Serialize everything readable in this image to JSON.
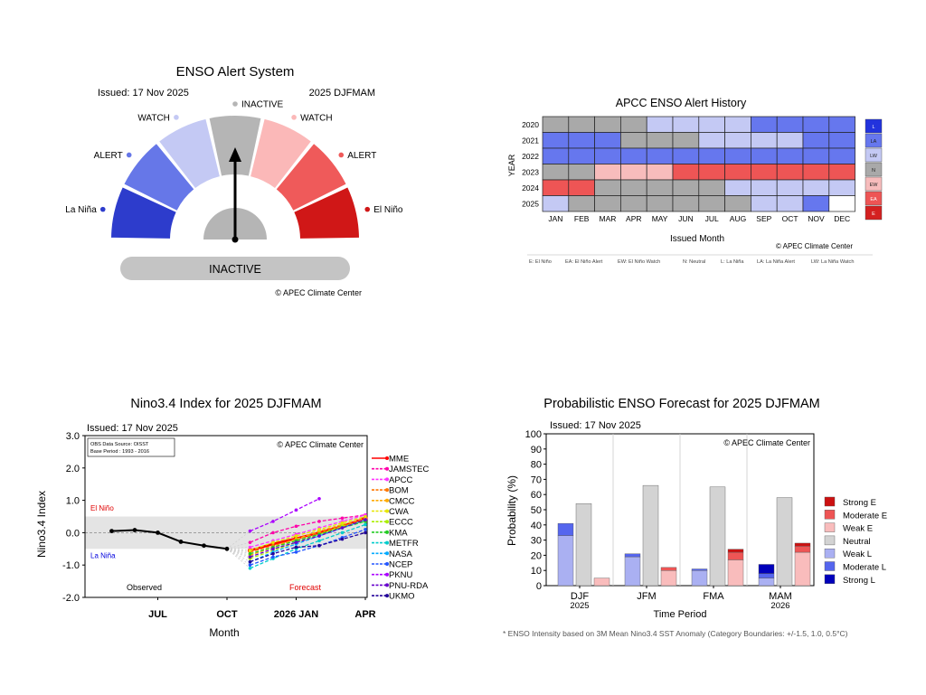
{
  "alert_system": {
    "title": "ENSO Alert System",
    "issued": "Issued: 17 Nov 2025",
    "period": "2025 DJFMAM",
    "segments": [
      {
        "label": "La Niña",
        "color": "#2d3ccc"
      },
      {
        "label": "ALERT",
        "color": "#6677e8"
      },
      {
        "label": "WATCH",
        "color": "#c4c9f4"
      },
      {
        "label": "INACTIVE",
        "color": "#b5b5b5"
      },
      {
        "label": "WATCH",
        "color": "#fbb8b8"
      },
      {
        "label": "ALERT",
        "color": "#ef5a5a"
      },
      {
        "label": "El Niño",
        "color": "#d01717"
      }
    ],
    "status": "INACTIVE",
    "credit": "© APEC Climate Center"
  },
  "chart_data": [
    {
      "type": "heatmap",
      "title": "APCC ENSO Alert History",
      "xlabel": "Issued Month",
      "ylabel": "YEAR",
      "credit": "© APEC Climate Center",
      "months": [
        "JAN",
        "FEB",
        "MAR",
        "APR",
        "MAY",
        "JUN",
        "JUL",
        "AUG",
        "SEP",
        "OCT",
        "NOV",
        "DEC"
      ],
      "years": [
        "2020",
        "2021",
        "2022",
        "2023",
        "2024",
        "2025"
      ],
      "grid": [
        [
          "N",
          "N",
          "N",
          "N",
          "LW",
          "LW",
          "LW",
          "LW",
          "LA",
          "LA",
          "LA",
          "LA"
        ],
        [
          "LA",
          "LA",
          "LA",
          "N",
          "N",
          "N",
          "LW",
          "LW",
          "LW",
          "LW",
          "LA",
          "LA"
        ],
        [
          "LA",
          "LA",
          "LA",
          "LA",
          "LA",
          "LA",
          "LA",
          "LA",
          "LA",
          "LA",
          "LA",
          "LA"
        ],
        [
          "N",
          "N",
          "EW",
          "EW",
          "EW",
          "EA",
          "EA",
          "EA",
          "EA",
          "EA",
          "EA",
          "EA"
        ],
        [
          "EA",
          "EA",
          "N",
          "N",
          "N",
          "N",
          "N",
          "LW",
          "LW",
          "LW",
          "LW",
          "LW"
        ],
        [
          "LW",
          "N",
          "N",
          "N",
          "N",
          "N",
          "N",
          "N",
          "LW",
          "LW",
          "LA",
          ""
        ]
      ],
      "legend": [
        {
          "code": "L",
          "color": "#2233dd"
        },
        {
          "code": "LA",
          "color": "#6677ee"
        },
        {
          "code": "LW",
          "color": "#c4c9f4"
        },
        {
          "code": "N",
          "color": "#a9a9a9"
        },
        {
          "code": "EW",
          "color": "#f7bcbc"
        },
        {
          "code": "EA",
          "color": "#ee5555"
        },
        {
          "code": "E",
          "color": "#d42020"
        }
      ],
      "key_text": [
        "E: El Niño",
        "EA: El Niño Alert",
        "EW: El Niño Watch",
        "N: Neutral",
        "L: La Niña",
        "LA: La Niña Alert",
        "LW: La Niña Watch"
      ]
    },
    {
      "type": "line",
      "title": "Nino3.4 Index for 2025 DJFMAM",
      "issued": "Issued: 17 Nov 2025",
      "xlabel": "Month",
      "ylabel": "Nino3.4 Index",
      "ylim": [
        -2.0,
        3.0
      ],
      "yticks": [
        "3.0",
        "2.0",
        "1.0",
        "0.0",
        "-1.0",
        "-2.0"
      ],
      "xticks": [
        "JUL",
        "OCT",
        "2026 JAN",
        "APR"
      ],
      "source_box": [
        "OBS Data Source: OISST",
        "Base Period : 1993 - 2016"
      ],
      "credit": "© APEC Climate Center",
      "region_labels": {
        "el_nino": "El Niño",
        "la_nina": "La Niña",
        "observed": "Observed",
        "forecast": "Forecast"
      },
      "observed": {
        "months": [
          -6,
          -5,
          -4,
          -3,
          -2,
          -1
        ],
        "values": [
          0.05,
          0.08,
          0.0,
          -0.28,
          -0.4,
          -0.5
        ]
      },
      "models": [
        {
          "name": "MME",
          "color": "#ff0000",
          "values": [
            -0.55,
            -0.35,
            -0.18,
            0.0,
            0.2,
            0.45
          ]
        },
        {
          "name": "JAMSTEC",
          "color": "#ff00aa",
          "values": [
            -0.3,
            0.0,
            0.2,
            0.35,
            0.45,
            0.55
          ]
        },
        {
          "name": "APCC",
          "color": "#ff33ff",
          "values": [
            -0.45,
            -0.25,
            -0.05,
            0.15,
            0.35,
            0.55
          ]
        },
        {
          "name": "BOM",
          "color": "#ff7700",
          "values": [
            -0.6,
            -0.4,
            -0.2,
            0.0,
            0.2,
            0.4
          ]
        },
        {
          "name": "CMCC",
          "color": "#ffaa00",
          "values": [
            -0.7,
            -0.45,
            -0.2,
            0.05,
            0.25,
            0.45
          ]
        },
        {
          "name": "CWA",
          "color": "#e6e600",
          "values": [
            -0.55,
            -0.3,
            -0.1,
            0.1,
            0.3,
            0.5
          ]
        },
        {
          "name": "ECCC",
          "color": "#aaee00",
          "values": [
            -0.8,
            -0.55,
            -0.3,
            -0.05,
            0.2,
            0.35
          ]
        },
        {
          "name": "KMA",
          "color": "#22cc22",
          "values": [
            -0.65,
            -0.45,
            -0.25,
            -0.05,
            0.15,
            0.35
          ]
        },
        {
          "name": "METFR",
          "color": "#00cccc",
          "values": [
            -1.1,
            -0.8,
            -0.5,
            -0.25,
            0.0,
            0.25
          ]
        },
        {
          "name": "NASA",
          "color": "#00aaff",
          "values": [
            -0.9,
            -0.6,
            -0.35,
            -0.1,
            0.15,
            0.4
          ]
        },
        {
          "name": "NCEP",
          "color": "#2255ff",
          "values": [
            -1.0,
            -0.75,
            -0.6,
            -0.4,
            -0.15,
            0.1
          ]
        },
        {
          "name": "PKNU",
          "color": "#aa00ff",
          "values": [
            0.05,
            0.35,
            0.7,
            1.05,
            null,
            null
          ]
        },
        {
          "name": "PNU-RDA",
          "color": "#6600cc",
          "values": [
            -0.75,
            -0.5,
            -0.3,
            -0.1,
            0.15,
            0.4
          ]
        },
        {
          "name": "UKMO",
          "color": "#220099",
          "values": [
            -0.9,
            -0.65,
            -0.45,
            -0.4,
            -0.2,
            0.0
          ]
        }
      ]
    },
    {
      "type": "bar",
      "title": "Probabilistic ENSO Forecast for 2025 DJFMAM",
      "issued": "Issued: 17 Nov 2025",
      "xlabel": "Time Period",
      "ylabel": "Probability (%)",
      "ylim": [
        0,
        100
      ],
      "yticks": [
        0,
        10,
        20,
        30,
        40,
        50,
        60,
        70,
        80,
        90,
        100
      ],
      "credit": "© APEC Climate Center",
      "categories": [
        {
          "label": "DJF",
          "sub": "2025"
        },
        {
          "label": "JFM",
          "sub": ""
        },
        {
          "label": "FMA",
          "sub": ""
        },
        {
          "label": "MAM",
          "sub": "2026"
        }
      ],
      "series": [
        {
          "name": "Strong E",
          "color": "#cc1111"
        },
        {
          "name": "Moderate E",
          "color": "#ee5555"
        },
        {
          "name": "Weak E",
          "color": "#f9bcbc"
        },
        {
          "name": "Neutral",
          "color": "#d3d3d3"
        },
        {
          "name": "Weak L",
          "color": "#aab0f2"
        },
        {
          "name": "Moderate L",
          "color": "#5566ee"
        },
        {
          "name": "Strong L",
          "color": "#0000bb"
        }
      ],
      "la_nina": [
        {
          "weak": 33,
          "moderate": 8,
          "strong": 0
        },
        {
          "weak": 19,
          "moderate": 2,
          "strong": 0
        },
        {
          "weak": 10,
          "moderate": 1,
          "strong": 0
        },
        {
          "weak": 5,
          "moderate": 3,
          "strong": 6
        }
      ],
      "neutral": [
        54,
        66,
        65,
        58
      ],
      "el_nino": [
        {
          "weak": 5,
          "moderate": 0,
          "strong": 0
        },
        {
          "weak": 10,
          "moderate": 2,
          "strong": 0
        },
        {
          "weak": 17,
          "moderate": 5,
          "strong": 2
        },
        {
          "weak": 22,
          "moderate": 4,
          "strong": 2
        }
      ],
      "footnote": "* ENSO Intensity based on 3M Mean Nino3.4 SST Anomaly (Category Boundaries: +/-1.5, 1.0, 0.5°C)"
    }
  ]
}
